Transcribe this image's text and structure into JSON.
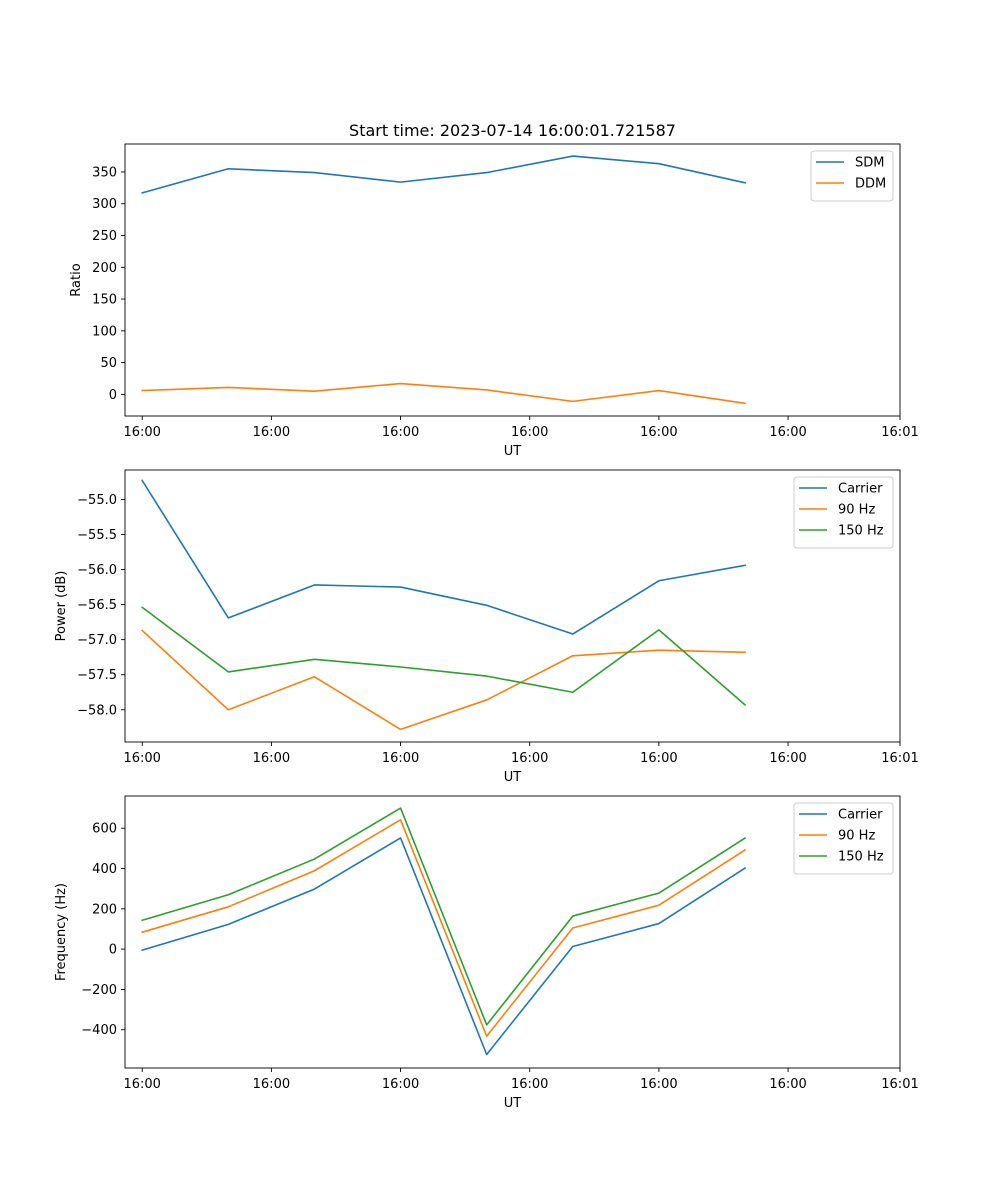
{
  "title": "Start time: 2023-07-14 16:00:01.721587",
  "colors": {
    "series": [
      "#1f77b4",
      "#ff7f0e",
      "#2ca02c"
    ],
    "axes": "#000000",
    "legend_border": "#cccccc"
  },
  "chart_data": [
    {
      "type": "line",
      "title": "Start time: 2023-07-14 16:00:01.721587",
      "xlabel": "UT",
      "ylabel": "Ratio",
      "x": [
        1,
        2,
        3,
        4,
        5,
        6,
        7,
        8
      ],
      "xlim": [
        0.8,
        9.8
      ],
      "xticks": [
        1,
        2.5,
        4,
        5.5,
        7,
        8.5,
        9.8
      ],
      "xticklabels": [
        "16:00",
        "16:00",
        "16:00",
        "16:00",
        "16:00",
        "16:00",
        "16:01"
      ],
      "ylim": [
        -34,
        394
      ],
      "yticks": [
        0,
        50,
        100,
        150,
        200,
        250,
        300,
        350
      ],
      "yticklabels": [
        "0",
        "50",
        "100",
        "150",
        "200",
        "250",
        "300",
        "350"
      ],
      "legend": "top-right",
      "series": [
        {
          "name": "SDM",
          "values": [
            317,
            355,
            349,
            334,
            349,
            375,
            363,
            333
          ]
        },
        {
          "name": "DDM",
          "values": [
            6,
            11,
            5,
            17,
            7,
            -11,
            6,
            -14
          ]
        }
      ]
    },
    {
      "type": "line",
      "title": "",
      "xlabel": "UT",
      "ylabel": "Power (dB)",
      "x": [
        1,
        2,
        3,
        4,
        5,
        6,
        7,
        8
      ],
      "xlim": [
        0.8,
        9.8
      ],
      "xticks": [
        1,
        2.5,
        4,
        5.5,
        7,
        8.5,
        9.8
      ],
      "xticklabels": [
        "16:00",
        "16:00",
        "16:00",
        "16:00",
        "16:00",
        "16:00",
        "16:01"
      ],
      "ylim": [
        -58.46,
        -54.58
      ],
      "yticks": [
        -58.0,
        -57.5,
        -57.0,
        -56.5,
        -56.0,
        -55.5,
        -55.0
      ],
      "yticklabels": [
        "−58.0",
        "−57.5",
        "−57.0",
        "−56.5",
        "−56.0",
        "−55.5",
        "−55.0"
      ],
      "legend": "top-right",
      "series": [
        {
          "name": "Carrier",
          "values": [
            -54.73,
            -56.69,
            -56.22,
            -56.25,
            -56.51,
            -56.92,
            -56.16,
            -55.94
          ]
        },
        {
          "name": "90 Hz",
          "values": [
            -56.87,
            -58.0,
            -57.53,
            -58.28,
            -57.86,
            -57.23,
            -57.15,
            -57.18
          ]
        },
        {
          "name": "150 Hz",
          "values": [
            -56.54,
            -57.46,
            -57.28,
            -57.39,
            -57.52,
            -57.75,
            -56.86,
            -57.93
          ]
        }
      ]
    },
    {
      "type": "line",
      "title": "",
      "xlabel": "UT",
      "ylabel": "Frequency (Hz)",
      "x": [
        1,
        2,
        3,
        4,
        5,
        6,
        7,
        8
      ],
      "xlim": [
        0.8,
        9.8
      ],
      "xticks": [
        1,
        2.5,
        4,
        5.5,
        7,
        8.5,
        9.8
      ],
      "xticklabels": [
        "16:00",
        "16:00",
        "16:00",
        "16:00",
        "16:00",
        "16:00",
        "16:01"
      ],
      "ylim": [
        -590,
        760
      ],
      "yticks": [
        -400,
        -200,
        0,
        200,
        400,
        600
      ],
      "yticklabels": [
        "−400",
        "−200",
        "0",
        "200",
        "400",
        "600"
      ],
      "legend": "top-right",
      "series": [
        {
          "name": "Carrier",
          "values": [
            -5,
            123,
            298,
            552,
            -523,
            13,
            127,
            402
          ]
        },
        {
          "name": "90 Hz",
          "values": [
            84,
            210,
            389,
            642,
            -432,
            105,
            218,
            492
          ]
        },
        {
          "name": "150 Hz",
          "values": [
            143,
            270,
            447,
            700,
            -376,
            164,
            278,
            551
          ]
        }
      ]
    }
  ]
}
